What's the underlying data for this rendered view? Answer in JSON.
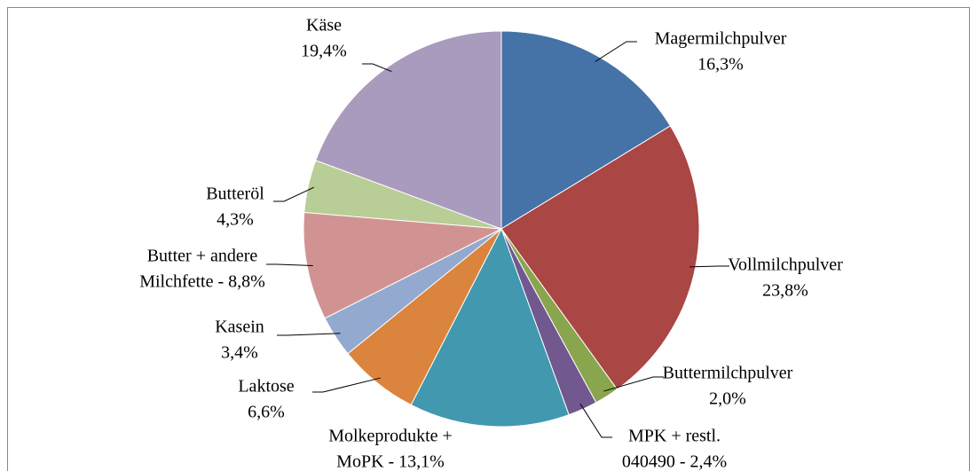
{
  "chart_data": {
    "type": "pie",
    "labels": [
      [
        "Magermilchpulver",
        "16,3%"
      ],
      [
        "Vollmilchpulver",
        "23,8%"
      ],
      [
        "Buttermilchpulver",
        "2,0%"
      ],
      [
        "MPK + restl.",
        "040490 - 2,4%"
      ],
      [
        "Molkeprodukte +",
        "MoPK - 13,1%"
      ],
      [
        "Laktose",
        "6,6%"
      ],
      [
        "Kasein",
        "3,4%"
      ],
      [
        "Butter + andere",
        "Milchfette - 8,8%"
      ],
      [
        "Butteröl",
        "4,3%"
      ],
      [
        "Käse",
        "19,4%"
      ]
    ],
    "values": [
      16.3,
      23.8,
      2.0,
      2.4,
      13.1,
      6.6,
      3.4,
      8.8,
      4.3,
      19.4
    ],
    "colors": [
      "#4572a7",
      "#aa4643",
      "#89a54e",
      "#71588f",
      "#4198af",
      "#db843d",
      "#93a9cf",
      "#d19392",
      "#b9cd96",
      "#a99bbd"
    ]
  }
}
